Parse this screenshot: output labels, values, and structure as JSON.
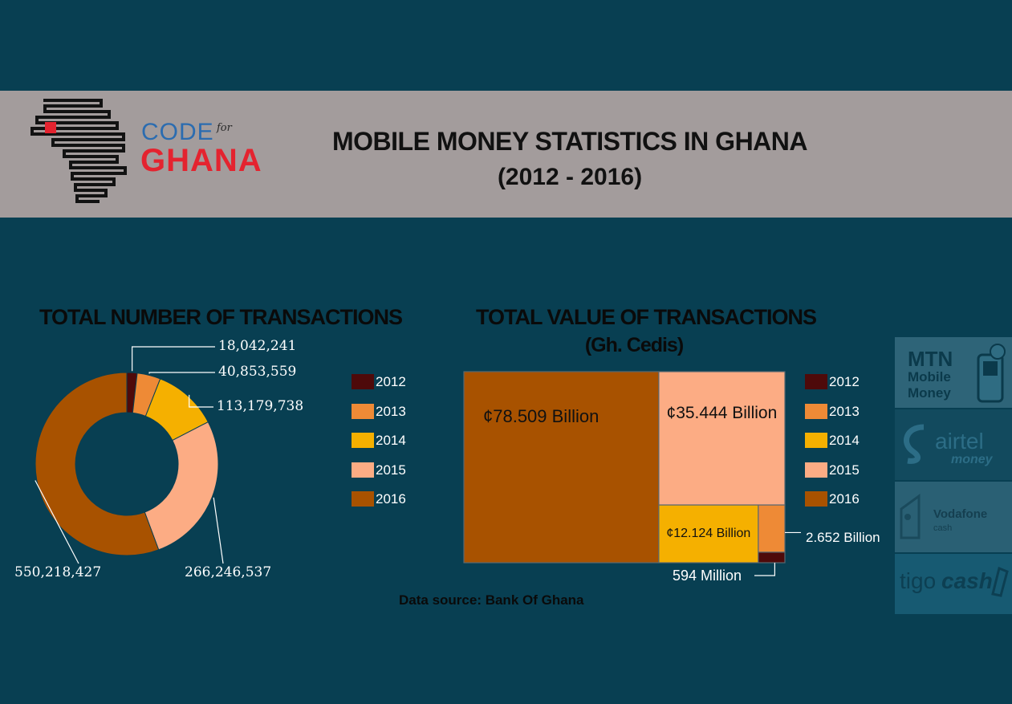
{
  "header": {
    "logo_code": "CODE",
    "logo_for": "for",
    "logo_ghana": "GHANA",
    "title": "MOBILE MONEY STATISTICS IN GHANA",
    "subtitle": "(2012 - 2016)"
  },
  "chart_data": [
    {
      "type": "pie",
      "title": "TOTAL NUMBER OF TRANSACTIONS",
      "categories": [
        "2012",
        "2013",
        "2014",
        "2015",
        "2016"
      ],
      "values": [
        18042241,
        40853559,
        113179738,
        266246537,
        550218427
      ],
      "data_labels": [
        "18,042,241",
        "40,853,559",
        "113,179,738",
        "266,246,537",
        "550,218,427"
      ],
      "colors": [
        "#4e0a0a",
        "#ee8a36",
        "#f5b000",
        "#fcac84",
        "#a85200"
      ],
      "legend_placement": "right"
    },
    {
      "type": "treemap",
      "title": "TOTAL VALUE OF TRANSACTIONS",
      "subtitle": "(Gh. Cedis)",
      "categories": [
        "2012",
        "2013",
        "2014",
        "2015",
        "2016"
      ],
      "values": [
        0.594,
        2.652,
        12.124,
        35.444,
        78.509
      ],
      "data_labels": [
        "594 Million",
        "2.652 Billion",
        "¢12.124 Billion",
        "¢35.444 Billion",
        "¢78.509 Billion"
      ],
      "colors": [
        "#4e0a0a",
        "#ee8a36",
        "#f5b000",
        "#fcac84",
        "#a85200"
      ],
      "legend_placement": "right"
    }
  ],
  "footer": {
    "source": "Data source: Bank Of Ghana"
  },
  "providers": [
    {
      "name": "MTN",
      "line2": "Mobile",
      "line3": "Money"
    },
    {
      "name": "airtel",
      "line2": "money"
    },
    {
      "name": "Vodafone",
      "line2": "cash"
    },
    {
      "name": "tigo",
      "line2": "cash"
    }
  ]
}
